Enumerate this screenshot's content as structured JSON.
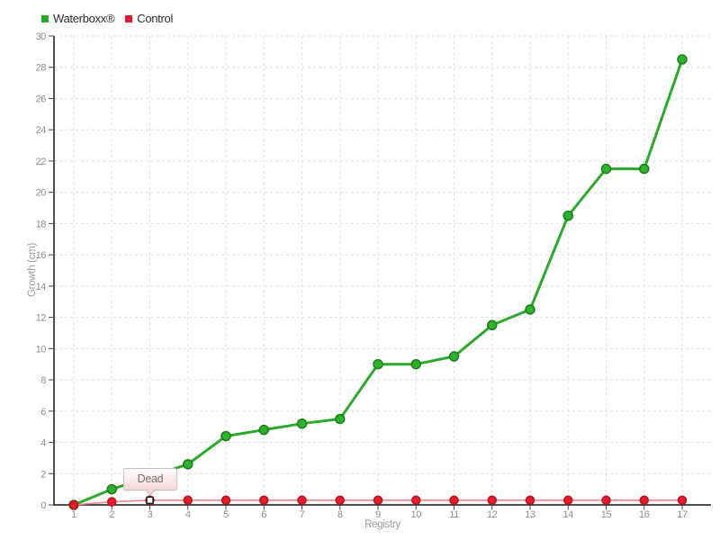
{
  "chart": {
    "legend": {
      "items": [
        {
          "label": "Waterboxx®",
          "color": "#22ac22"
        },
        {
          "label": "Control",
          "color": "#e5192b"
        }
      ]
    },
    "tooltip": {
      "text": "Dead"
    }
  },
  "chart_data": {
    "type": "line",
    "x": [
      1,
      2,
      3,
      4,
      5,
      6,
      7,
      8,
      9,
      10,
      11,
      12,
      13,
      14,
      15,
      16,
      17
    ],
    "series": [
      {
        "name": "Waterboxx®",
        "values": [
          0,
          1,
          1.8,
          2.6,
          4.4,
          4.8,
          5.2,
          5.5,
          9,
          9,
          9.5,
          11.5,
          12.5,
          18.5,
          21.5,
          21.5,
          28.5
        ],
        "line_color": "#2ca82c",
        "marker_color": "#2eb22e",
        "marker_stroke": "#1a7c1a",
        "line_width": 3,
        "marker_radius": 5
      },
      {
        "name": "Control",
        "values": [
          0,
          0.2,
          0.3,
          0.3,
          0.3,
          0.3,
          0.3,
          0.3,
          0.3,
          0.3,
          0.3,
          0.3,
          0.3,
          0.3,
          0.3,
          0.3,
          0.3
        ],
        "line_color": "#f2848b",
        "marker_color": "#e51d2b",
        "marker_stroke": "#b5121f",
        "line_width": 1.6,
        "marker_radius": 4.5
      }
    ],
    "title": "",
    "xlabel": "Registry",
    "ylabel": "Growth (cm)",
    "ylim": [
      0,
      30
    ],
    "ytick_step": 2,
    "xticks": [
      1,
      2,
      3,
      4,
      5,
      6,
      7,
      8,
      9,
      10,
      11,
      12,
      13,
      14,
      15,
      16,
      17
    ],
    "grid": true,
    "legend_position": "top-left",
    "annotation": {
      "text": "Dead",
      "series": "Control",
      "x": 3,
      "marker": "white-square"
    }
  },
  "style_colors": {
    "grid": "#e0e0e0",
    "axis": "#151515",
    "tick": "#444444",
    "tick_label": "#8c8c8c",
    "axis_title": "#9a9a9a",
    "legend_text": "#2b2b2b",
    "tooltip_border": "#c3c3c3",
    "tooltip_bg_bottom": "#f6d7d7",
    "tooltip_text": "#707070",
    "selected_marker_fill": "#ffffff",
    "selected_marker_stroke": "#1a1a1a"
  }
}
